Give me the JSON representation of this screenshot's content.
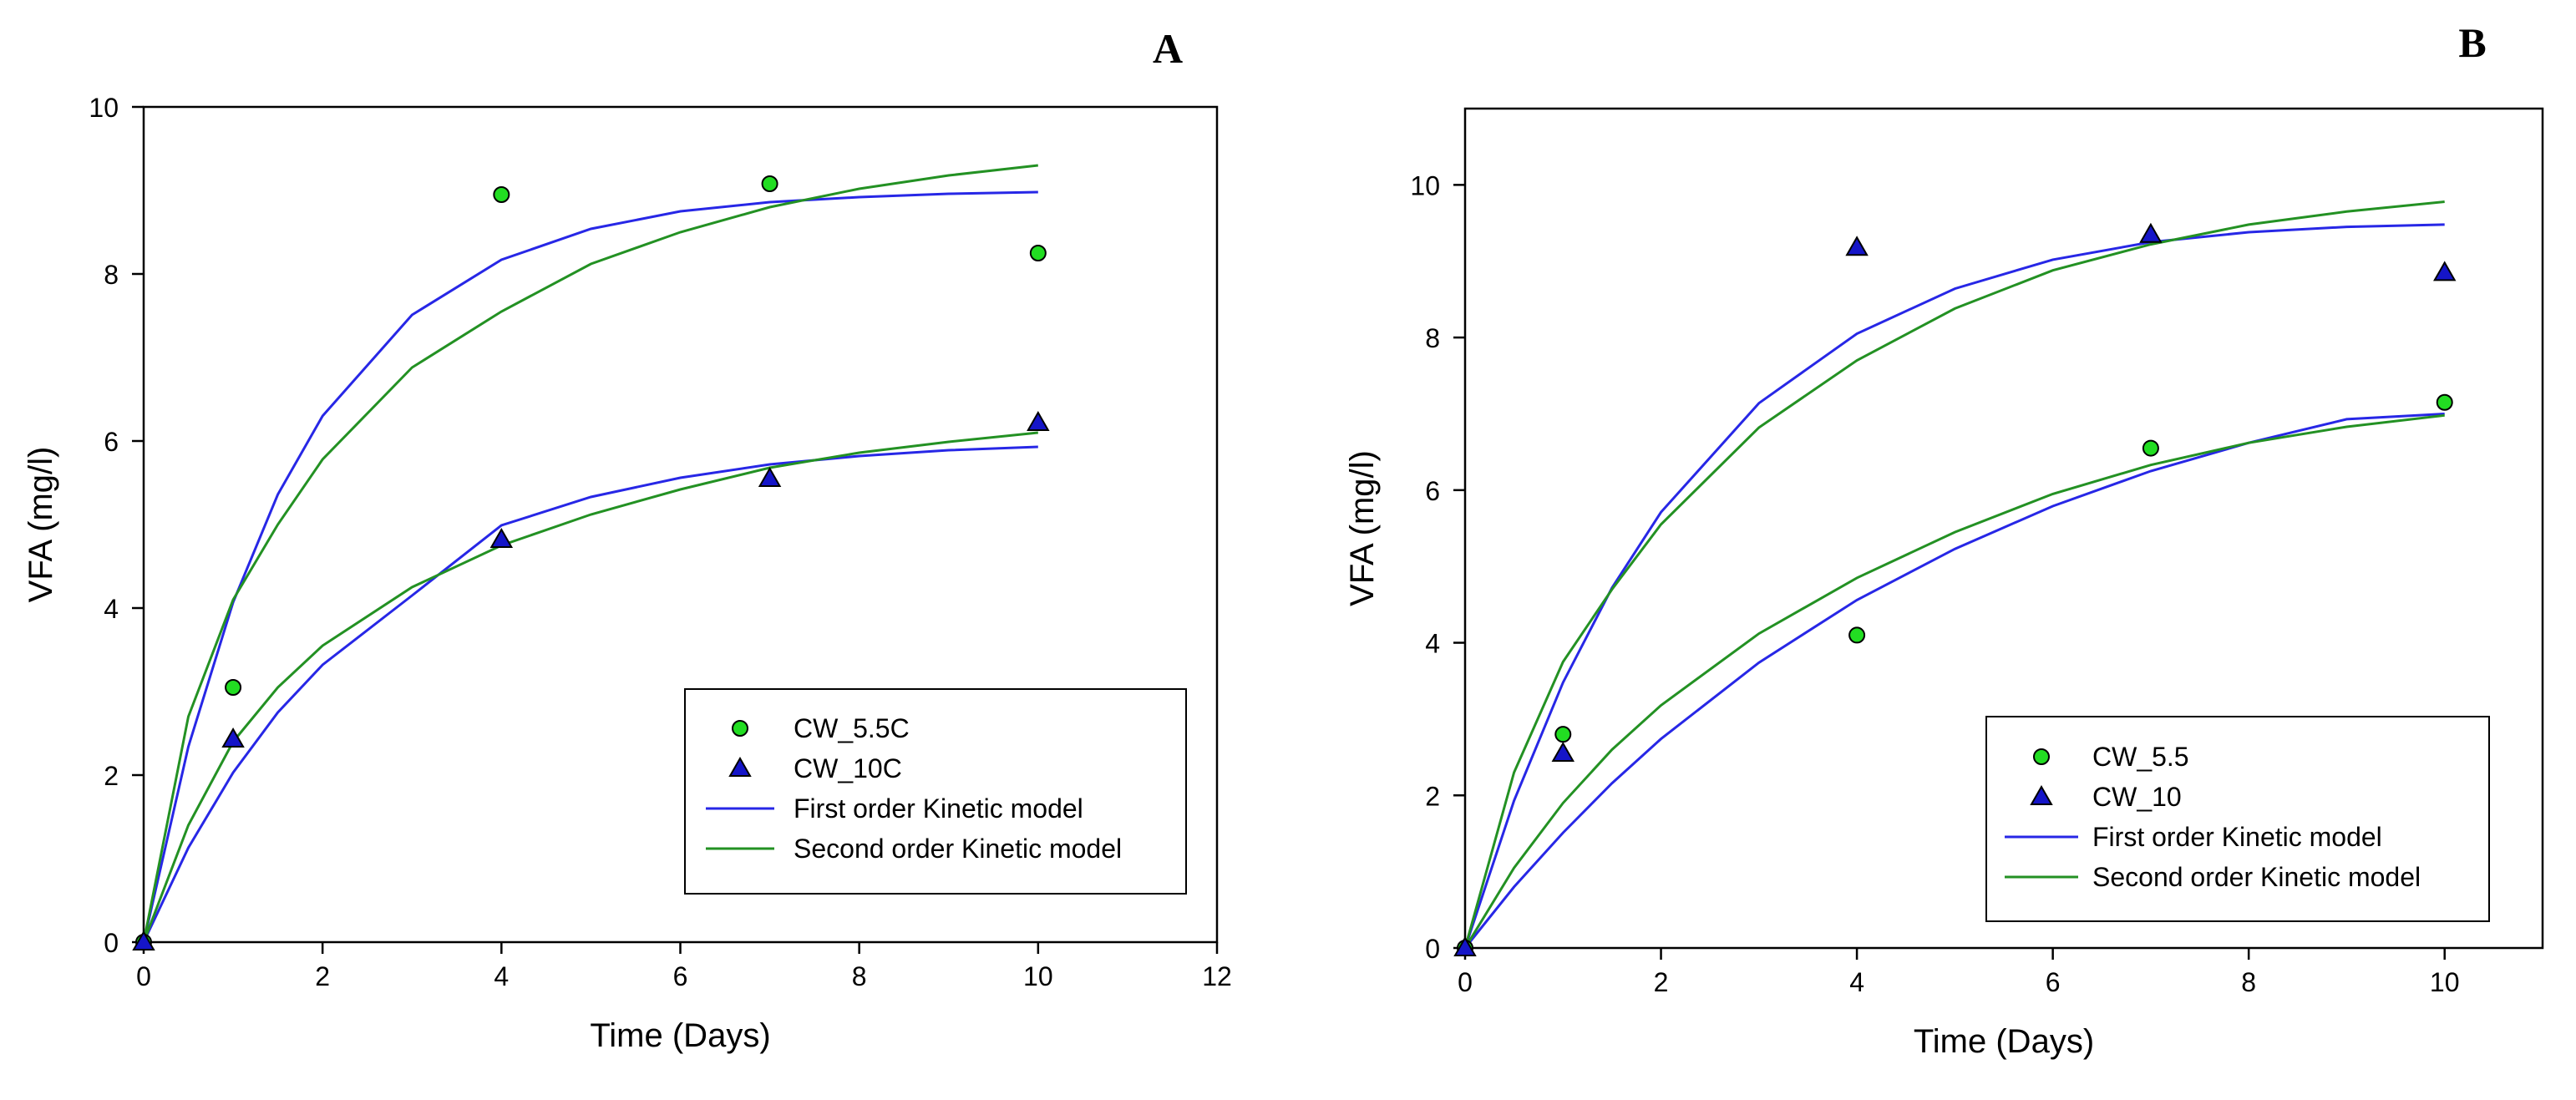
{
  "chart_data": [
    {
      "panel_label": "A",
      "type": "scatter",
      "xlabel": "Time (Days)",
      "ylabel": "VFA (mg/l)",
      "xlim": [
        0,
        12
      ],
      "ylim": [
        0,
        10
      ],
      "xticks": [
        0,
        2,
        4,
        6,
        8,
        10,
        12
      ],
      "yticks": [
        0,
        2,
        4,
        6,
        8,
        10
      ],
      "grid": false,
      "legend_position": "bottom-right",
      "series": [
        {
          "name": "CW_5.5C",
          "kind": "points",
          "marker": "circle",
          "color": "#22dd22",
          "x": [
            0,
            1,
            4,
            7,
            10
          ],
          "y": [
            0.0,
            3.05,
            8.95,
            9.08,
            8.25
          ]
        },
        {
          "name": "CW_10C",
          "kind": "points",
          "marker": "triangle",
          "color": "#1515c8",
          "x": [
            0,
            1,
            4,
            7,
            10
          ],
          "y": [
            0.0,
            2.43,
            4.82,
            5.55,
            6.22
          ]
        },
        {
          "name": "First order Kinetic model",
          "kind": "line",
          "color": "#2727e6",
          "x": [
            0,
            0.5,
            1,
            1.5,
            2,
            3,
            4,
            5,
            6,
            7,
            8,
            9,
            10
          ],
          "y": [
            0.0,
            2.34,
            4.07,
            5.36,
            6.3,
            7.51,
            8.17,
            8.54,
            8.75,
            8.86,
            8.92,
            8.96,
            8.98
          ]
        },
        {
          "name": "First order Kinetic model",
          "kind": "line",
          "color": "#2727e6",
          "legend": false,
          "x": [
            0,
            0.5,
            1,
            1.5,
            2,
            3,
            4,
            5,
            6,
            7,
            8,
            9,
            10
          ],
          "y": [
            0.0,
            1.13,
            2.03,
            2.75,
            3.32,
            4.15,
            4.99,
            5.33,
            5.56,
            5.72,
            5.82,
            5.89,
            5.93
          ]
        },
        {
          "name": "Second order Kinetic model",
          "kind": "line",
          "color": "#239123",
          "x": [
            0,
            0.5,
            1,
            1.5,
            2,
            3,
            4,
            5,
            6,
            7,
            8,
            9,
            10
          ],
          "y": [
            0.0,
            2.7,
            4.1,
            5.0,
            5.78,
            6.88,
            7.55,
            8.12,
            8.5,
            8.8,
            9.02,
            9.18,
            9.3
          ]
        },
        {
          "name": "Second order Kinetic model",
          "kind": "line",
          "color": "#239123",
          "legend": false,
          "x": [
            0,
            0.5,
            1,
            1.5,
            2,
            3,
            4,
            5,
            6,
            7,
            8,
            9,
            10
          ],
          "y": [
            0.0,
            1.4,
            2.4,
            3.05,
            3.55,
            4.25,
            4.75,
            5.12,
            5.42,
            5.68,
            5.86,
            5.99,
            6.1
          ]
        }
      ]
    },
    {
      "panel_label": "B",
      "type": "scatter",
      "xlabel": "Time (Days)",
      "ylabel": "VFA (mg/l)",
      "xlim": [
        0,
        11
      ],
      "ylim": [
        0,
        11
      ],
      "xticks": [
        0,
        2,
        4,
        6,
        8,
        10
      ],
      "yticks": [
        0,
        2,
        4,
        6,
        8,
        10
      ],
      "grid": false,
      "legend_position": "bottom-right",
      "series": [
        {
          "name": "CW_5.5",
          "kind": "points",
          "marker": "circle",
          "color": "#22dd22",
          "x": [
            0,
            1,
            4,
            7,
            10
          ],
          "y": [
            0.0,
            2.8,
            4.1,
            6.55,
            7.15
          ]
        },
        {
          "name": "CW_10",
          "kind": "points",
          "marker": "triangle",
          "color": "#1515c8",
          "x": [
            0,
            1,
            4,
            7,
            10
          ],
          "y": [
            0.0,
            2.55,
            9.18,
            9.35,
            8.85
          ]
        },
        {
          "name": "First order Kinetic model",
          "kind": "line",
          "color": "#2727e6",
          "x": [
            0,
            0.5,
            1,
            1.5,
            2,
            3,
            4,
            5,
            6,
            7,
            8,
            9,
            10
          ],
          "y": [
            0.0,
            1.93,
            3.48,
            4.72,
            5.71,
            7.14,
            8.05,
            8.64,
            9.02,
            9.25,
            9.38,
            9.45,
            9.48
          ]
        },
        {
          "name": "First order Kinetic model",
          "kind": "line",
          "color": "#2727e6",
          "legend": false,
          "x": [
            0,
            0.5,
            1,
            1.5,
            2,
            3,
            4,
            5,
            6,
            7,
            8,
            9,
            10
          ],
          "y": [
            0.0,
            0.8,
            1.51,
            2.16,
            2.74,
            3.74,
            4.56,
            5.23,
            5.79,
            6.25,
            6.62,
            6.93,
            7.0
          ]
        },
        {
          "name": "Second order Kinetic model",
          "kind": "line",
          "color": "#239123",
          "x": [
            0,
            0.5,
            1,
            1.5,
            2,
            3,
            4,
            5,
            6,
            7,
            8,
            9,
            10
          ],
          "y": [
            0.0,
            2.3,
            3.75,
            4.7,
            5.55,
            6.82,
            7.7,
            8.38,
            8.88,
            9.22,
            9.48,
            9.65,
            9.78
          ]
        },
        {
          "name": "Second order Kinetic model",
          "kind": "line",
          "color": "#239123",
          "legend": false,
          "x": [
            0,
            0.5,
            1,
            1.5,
            2,
            3,
            4,
            5,
            6,
            7,
            8,
            9,
            10
          ],
          "y": [
            0.0,
            1.05,
            1.9,
            2.6,
            3.18,
            4.12,
            4.85,
            5.45,
            5.95,
            6.33,
            6.62,
            6.83,
            6.98
          ]
        }
      ]
    }
  ]
}
